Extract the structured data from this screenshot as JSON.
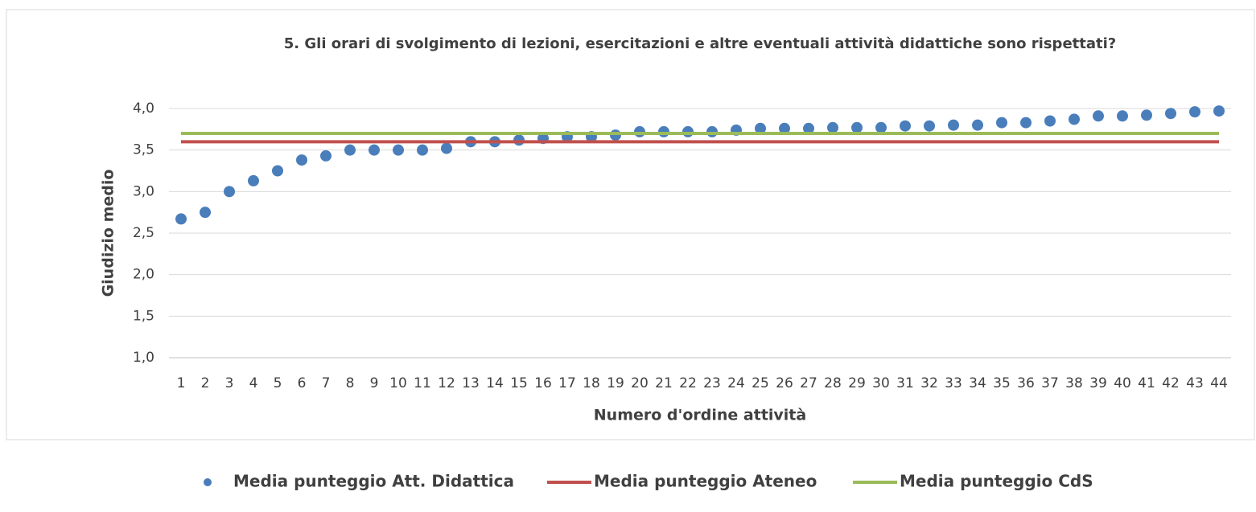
{
  "chart_data": {
    "type": "combo",
    "title": "5. Gli orari di svolgimento di lezioni, esercitazioni e altre eventuali attività didattiche sono rispettati?",
    "x_label": "Numero d'ordine attività",
    "y_label": "Giudizio medio",
    "categories": [
      1,
      2,
      3,
      4,
      5,
      6,
      7,
      8,
      9,
      10,
      11,
      12,
      13,
      14,
      15,
      16,
      17,
      18,
      19,
      20,
      21,
      22,
      23,
      24,
      25,
      26,
      27,
      28,
      29,
      30,
      31,
      32,
      33,
      34,
      35,
      36,
      37,
      38,
      39,
      40,
      41,
      42,
      43,
      44
    ],
    "series": [
      {
        "name": "Media punteggio Att. Didattica",
        "type": "scatter",
        "color": "#4a7ebb",
        "values": [
          2.67,
          2.75,
          3.0,
          3.13,
          3.25,
          3.38,
          3.43,
          3.5,
          3.5,
          3.5,
          3.5,
          3.52,
          3.6,
          3.6,
          3.62,
          3.64,
          3.66,
          3.66,
          3.68,
          3.72,
          3.72,
          3.72,
          3.72,
          3.74,
          3.76,
          3.76,
          3.76,
          3.77,
          3.77,
          3.77,
          3.79,
          3.79,
          3.8,
          3.8,
          3.83,
          3.83,
          3.85,
          3.87,
          3.91,
          3.91,
          3.92,
          3.94,
          3.96,
          3.97
        ]
      },
      {
        "name": "Media punteggio Ateneo",
        "type": "line",
        "color": "#c0504d",
        "values": [
          3.6,
          3.6,
          3.6,
          3.6,
          3.6,
          3.6,
          3.6,
          3.6,
          3.6,
          3.6,
          3.6,
          3.6,
          3.6,
          3.6,
          3.6,
          3.6,
          3.6,
          3.6,
          3.6,
          3.6,
          3.6,
          3.6,
          3.6,
          3.6,
          3.6,
          3.6,
          3.6,
          3.6,
          3.6,
          3.6,
          3.6,
          3.6,
          3.6,
          3.6,
          3.6,
          3.6,
          3.6,
          3.6,
          3.6,
          3.6,
          3.6,
          3.6,
          3.6,
          3.6
        ]
      },
      {
        "name": "Media punteggio CdS",
        "type": "line",
        "color": "#9bbb59",
        "values": [
          3.7,
          3.7,
          3.7,
          3.7,
          3.7,
          3.7,
          3.7,
          3.7,
          3.7,
          3.7,
          3.7,
          3.7,
          3.7,
          3.7,
          3.7,
          3.7,
          3.7,
          3.7,
          3.7,
          3.7,
          3.7,
          3.7,
          3.7,
          3.7,
          3.7,
          3.7,
          3.7,
          3.7,
          3.7,
          3.7,
          3.7,
          3.7,
          3.7,
          3.7,
          3.7,
          3.7,
          3.7,
          3.7,
          3.7,
          3.7,
          3.7,
          3.7,
          3.7,
          3.7
        ]
      }
    ],
    "ylim": [
      1,
      4
    ],
    "yticks": [
      {
        "value": 1,
        "label": "1,0"
      },
      {
        "value": 1.5,
        "label": "1,5"
      },
      {
        "value": 2,
        "label": "2,0"
      },
      {
        "value": 2.5,
        "label": "2,5"
      },
      {
        "value": 3,
        "label": "3,0"
      },
      {
        "value": 3.5,
        "label": "3,5"
      },
      {
        "value": 4,
        "label": "4,0"
      }
    ],
    "grid": true,
    "legend": "bottom"
  }
}
